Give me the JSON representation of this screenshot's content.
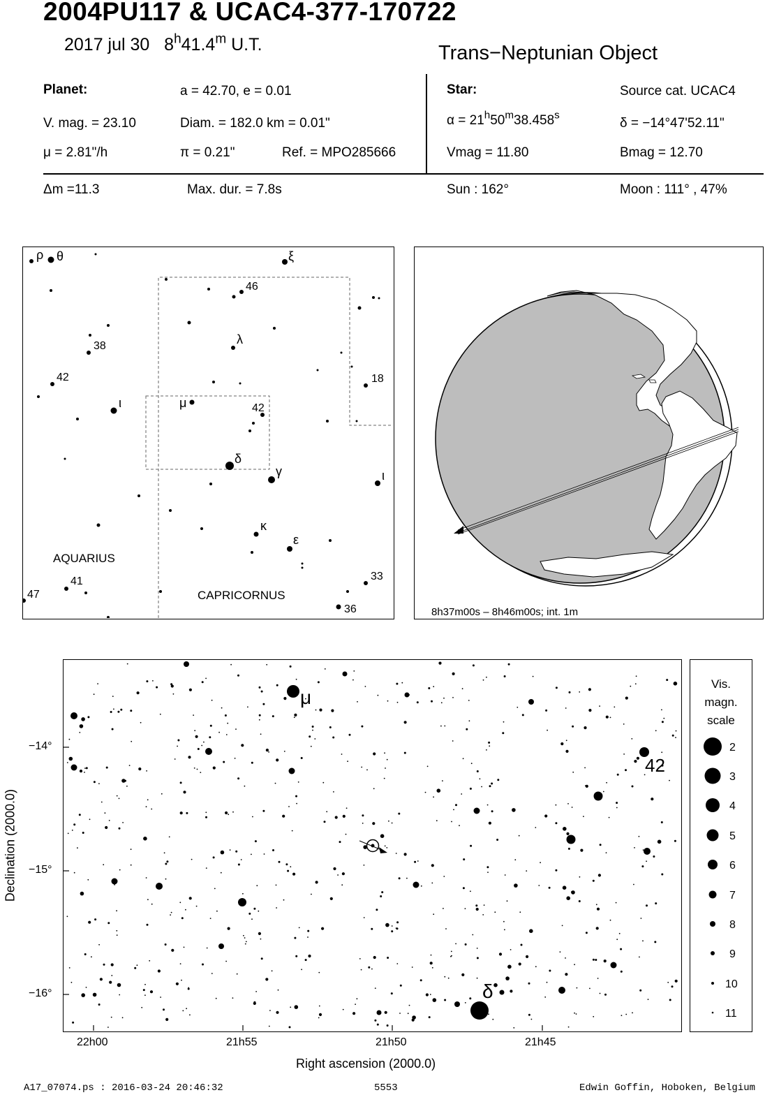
{
  "header": {
    "title": "2004PU117  &  UCAC4-377-170722",
    "date": "2017 jul 30",
    "time_h": "8",
    "time_h_sup": "h",
    "time_m": "41.4",
    "time_m_sup": "m",
    "time_ut": "U.T.",
    "object_type": "Trans−Neptunian Object"
  },
  "planet": {
    "label": "Planet:",
    "orbit": "a = 42.70, e = 0.01",
    "vmag": "V. mag. = 23.10",
    "diam": "Diam. = 182.0 km = 0.01\"",
    "mu": "μ =  2.81\"/h",
    "pi": "π =  0.21\"",
    "ref": "Ref. = MPO285666"
  },
  "star": {
    "label": "Star:",
    "source": "Source cat.  UCAC4",
    "alpha_prefix": "α = 21",
    "alpha_h": "h",
    "alpha_mid": "50",
    "alpha_m": "m",
    "alpha_sec": "38.458",
    "alpha_s": "s",
    "delta": "δ = −14°47'52.11\"",
    "vmag": "Vmag = 11.80",
    "bmag": "Bmag = 12.70"
  },
  "summary": {
    "dm": "Δm =11.3",
    "maxdur": "Max. dur. = 7.8s",
    "sun": "Sun : 162°",
    "moon": "Moon : 111° , 47%"
  },
  "constellation_map": {
    "labels": [
      "ρ",
      "θ",
      "ξ",
      "46",
      "38",
      "λ",
      "42",
      "18",
      "ι",
      "μ",
      "42",
      "δ",
      "γ",
      "ι",
      "κ",
      "ε",
      "33",
      "36",
      "41",
      "47"
    ],
    "regions": [
      "AQUARIUS",
      "CAPRICORNUS"
    ]
  },
  "globe": {
    "caption": "8h37m00s –  8h46m00s; int.  1m"
  },
  "star_chart": {
    "y_ticks": [
      "−14°",
      "−15°",
      "−16°"
    ],
    "x_ticks": [
      "22h00",
      "21h55",
      "21h50",
      "21h45"
    ],
    "xlabel": "Right ascension (2000.0)",
    "ylabel": "Declination (2000.0)",
    "labels": [
      "μ",
      "42",
      "δ"
    ]
  },
  "legend": {
    "title_lines": [
      "Vis.",
      "magn.",
      "scale"
    ],
    "mags": [
      "2",
      "3",
      "4",
      "5",
      "6",
      "7",
      "8",
      "9",
      "10",
      "11"
    ]
  },
  "footer": {
    "file": "A17_07074.ps : 2016-03-24 20:46:32",
    "number": "5553",
    "author": "Edwin Goffin, Hoboken, Belgium"
  }
}
